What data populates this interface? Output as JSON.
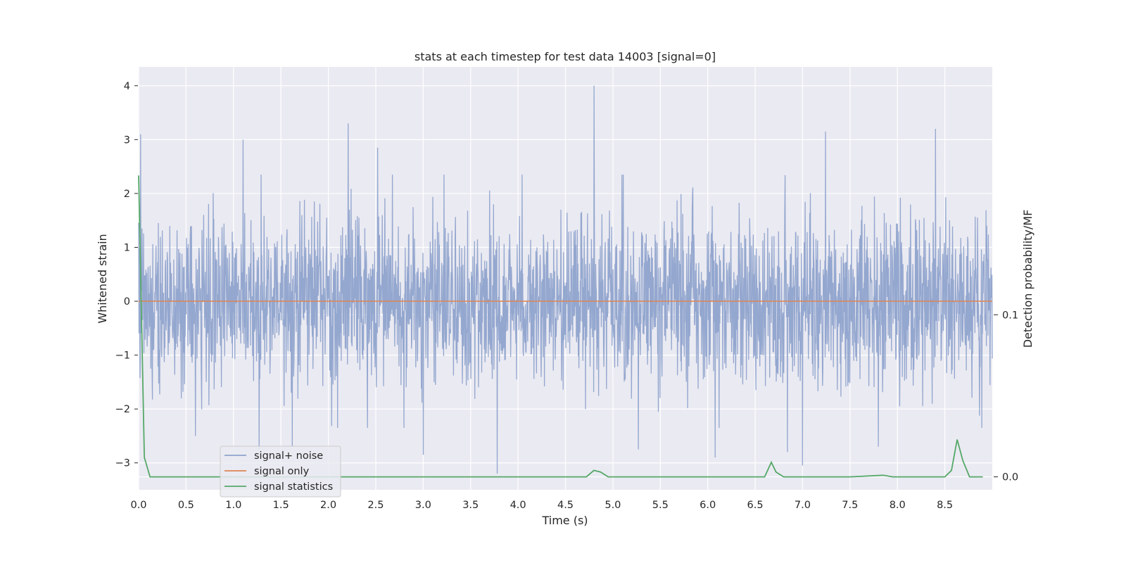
{
  "chart_data": {
    "type": "line",
    "title": "stats at each timestep for test data 14003 [signal=0]",
    "xlabel": "Time (s)",
    "ylabel": "Whitened strain",
    "y2label": "Detection probability/MF",
    "xlim": [
      0.0,
      9.0
    ],
    "ylim": [
      -3.5,
      4.35
    ],
    "y2lim": [
      -0.008,
      0.253
    ],
    "xticks": [
      "0.0",
      "0.5",
      "1.0",
      "1.5",
      "2.0",
      "2.5",
      "3.0",
      "3.5",
      "4.0",
      "4.5",
      "5.0",
      "5.5",
      "6.0",
      "6.5",
      "7.0",
      "7.5",
      "8.0",
      "8.5"
    ],
    "yticks": [
      "4",
      "3",
      "2",
      "1",
      "0",
      "−1",
      "−2",
      "−3"
    ],
    "y2ticks": [
      "0.1",
      "0.0"
    ],
    "grid": true,
    "legend_position": "lower-left",
    "series": [
      {
        "name": "signal+ noise",
        "axis": "left",
        "color": "#8fa3cc",
        "description": "whitened noise strain, roughly ±1.8 amplitude with spikes",
        "peaks": [
          {
            "x": 0.02,
            "y": 3.1
          },
          {
            "x": 1.1,
            "y": 3.0
          },
          {
            "x": 2.21,
            "y": 3.3
          },
          {
            "x": 2.52,
            "y": 2.85
          },
          {
            "x": 4.8,
            "y": 4.0
          },
          {
            "x": 7.24,
            "y": 3.15
          },
          {
            "x": 8.4,
            "y": 3.2
          }
        ],
        "troughs": [
          {
            "x": 0.6,
            "y": -2.5
          },
          {
            "x": 1.27,
            "y": -2.75
          },
          {
            "x": 1.62,
            "y": -2.7
          },
          {
            "x": 3.0,
            "y": -2.85
          },
          {
            "x": 3.78,
            "y": -3.2
          },
          {
            "x": 5.27,
            "y": -2.75
          },
          {
            "x": 6.08,
            "y": -2.9
          },
          {
            "x": 6.84,
            "y": -2.8
          },
          {
            "x": 7.0,
            "y": -3.05
          },
          {
            "x": 7.8,
            "y": -2.7
          }
        ]
      },
      {
        "name": "signal only",
        "axis": "left",
        "color": "#dd8452",
        "x": [
          0.0,
          9.0
        ],
        "y": [
          0.0,
          0.0
        ]
      },
      {
        "name": "signal statistics",
        "axis": "right",
        "color": "#55a868",
        "x": [
          0.0,
          0.06,
          0.12,
          0.5,
          1.0,
          2.0,
          3.0,
          4.0,
          4.5,
          4.72,
          4.8,
          4.87,
          4.95,
          5.5,
          6.0,
          6.6,
          6.67,
          6.72,
          6.8,
          7.5,
          7.85,
          7.95,
          8.5,
          8.57,
          8.63,
          8.69,
          8.76,
          8.9
        ],
        "y": [
          0.186,
          0.012,
          0.0,
          0.0,
          0.0,
          0.0,
          0.0,
          0.0,
          0.0,
          0.0,
          0.004,
          0.003,
          0.0,
          0.0,
          0.0,
          0.0,
          0.009,
          0.003,
          0.0,
          0.0,
          0.001,
          0.0,
          0.0,
          0.004,
          0.023,
          0.01,
          0.0,
          0.0
        ]
      }
    ]
  }
}
